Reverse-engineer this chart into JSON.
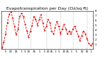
{
  "title": "Evapotranspiration per Day (Oz/sq ft)",
  "line_color": "#dd0000",
  "marker": "o",
  "linestyle": "--",
  "background_color": "#ffffff",
  "grid_color": "#999999",
  "ylim": [
    0,
    8
  ],
  "ytick_labels": [
    "8",
    "7",
    "6",
    "5",
    "4",
    "3",
    "2",
    "1",
    ""
  ],
  "ytick_vals": [
    8,
    7,
    6,
    5,
    4,
    3,
    2,
    1,
    0
  ],
  "values": [
    0.3,
    1.5,
    3.2,
    5.5,
    7.2,
    7.8,
    6.5,
    4.8,
    3.0,
    4.2,
    6.8,
    7.5,
    6.8,
    5.2,
    3.8,
    2.5,
    3.8,
    5.0,
    6.8,
    6.2,
    5.0,
    6.2,
    7.2,
    5.5,
    4.0,
    4.8,
    6.2,
    5.5,
    3.8,
    3.2,
    4.5,
    5.8,
    4.8,
    3.2,
    4.2,
    5.2,
    4.2,
    3.2,
    3.8,
    3.2,
    4.2,
    4.8,
    3.8,
    2.8,
    1.8,
    2.8,
    3.8,
    3.2,
    2.2,
    1.2,
    0.8,
    1.2
  ],
  "vline_positions": [
    9,
    16,
    25,
    33,
    40,
    48
  ],
  "xtick_positions": [
    2,
    5,
    8,
    11,
    13,
    15,
    18,
    21,
    24,
    26,
    28,
    30,
    32,
    35,
    37,
    39,
    42,
    45,
    48,
    50
  ],
  "xtick_labels": [
    "5",
    "10",
    "15",
    "1",
    "5",
    "10",
    "15",
    "1",
    "5",
    "10",
    "15",
    "1",
    "5",
    "10",
    "15",
    "1",
    "5",
    "10",
    "15",
    "1"
  ],
  "title_fontsize": 4.5,
  "tick_fontsize": 3.0,
  "markersize": 1.2,
  "linewidth": 0.6
}
